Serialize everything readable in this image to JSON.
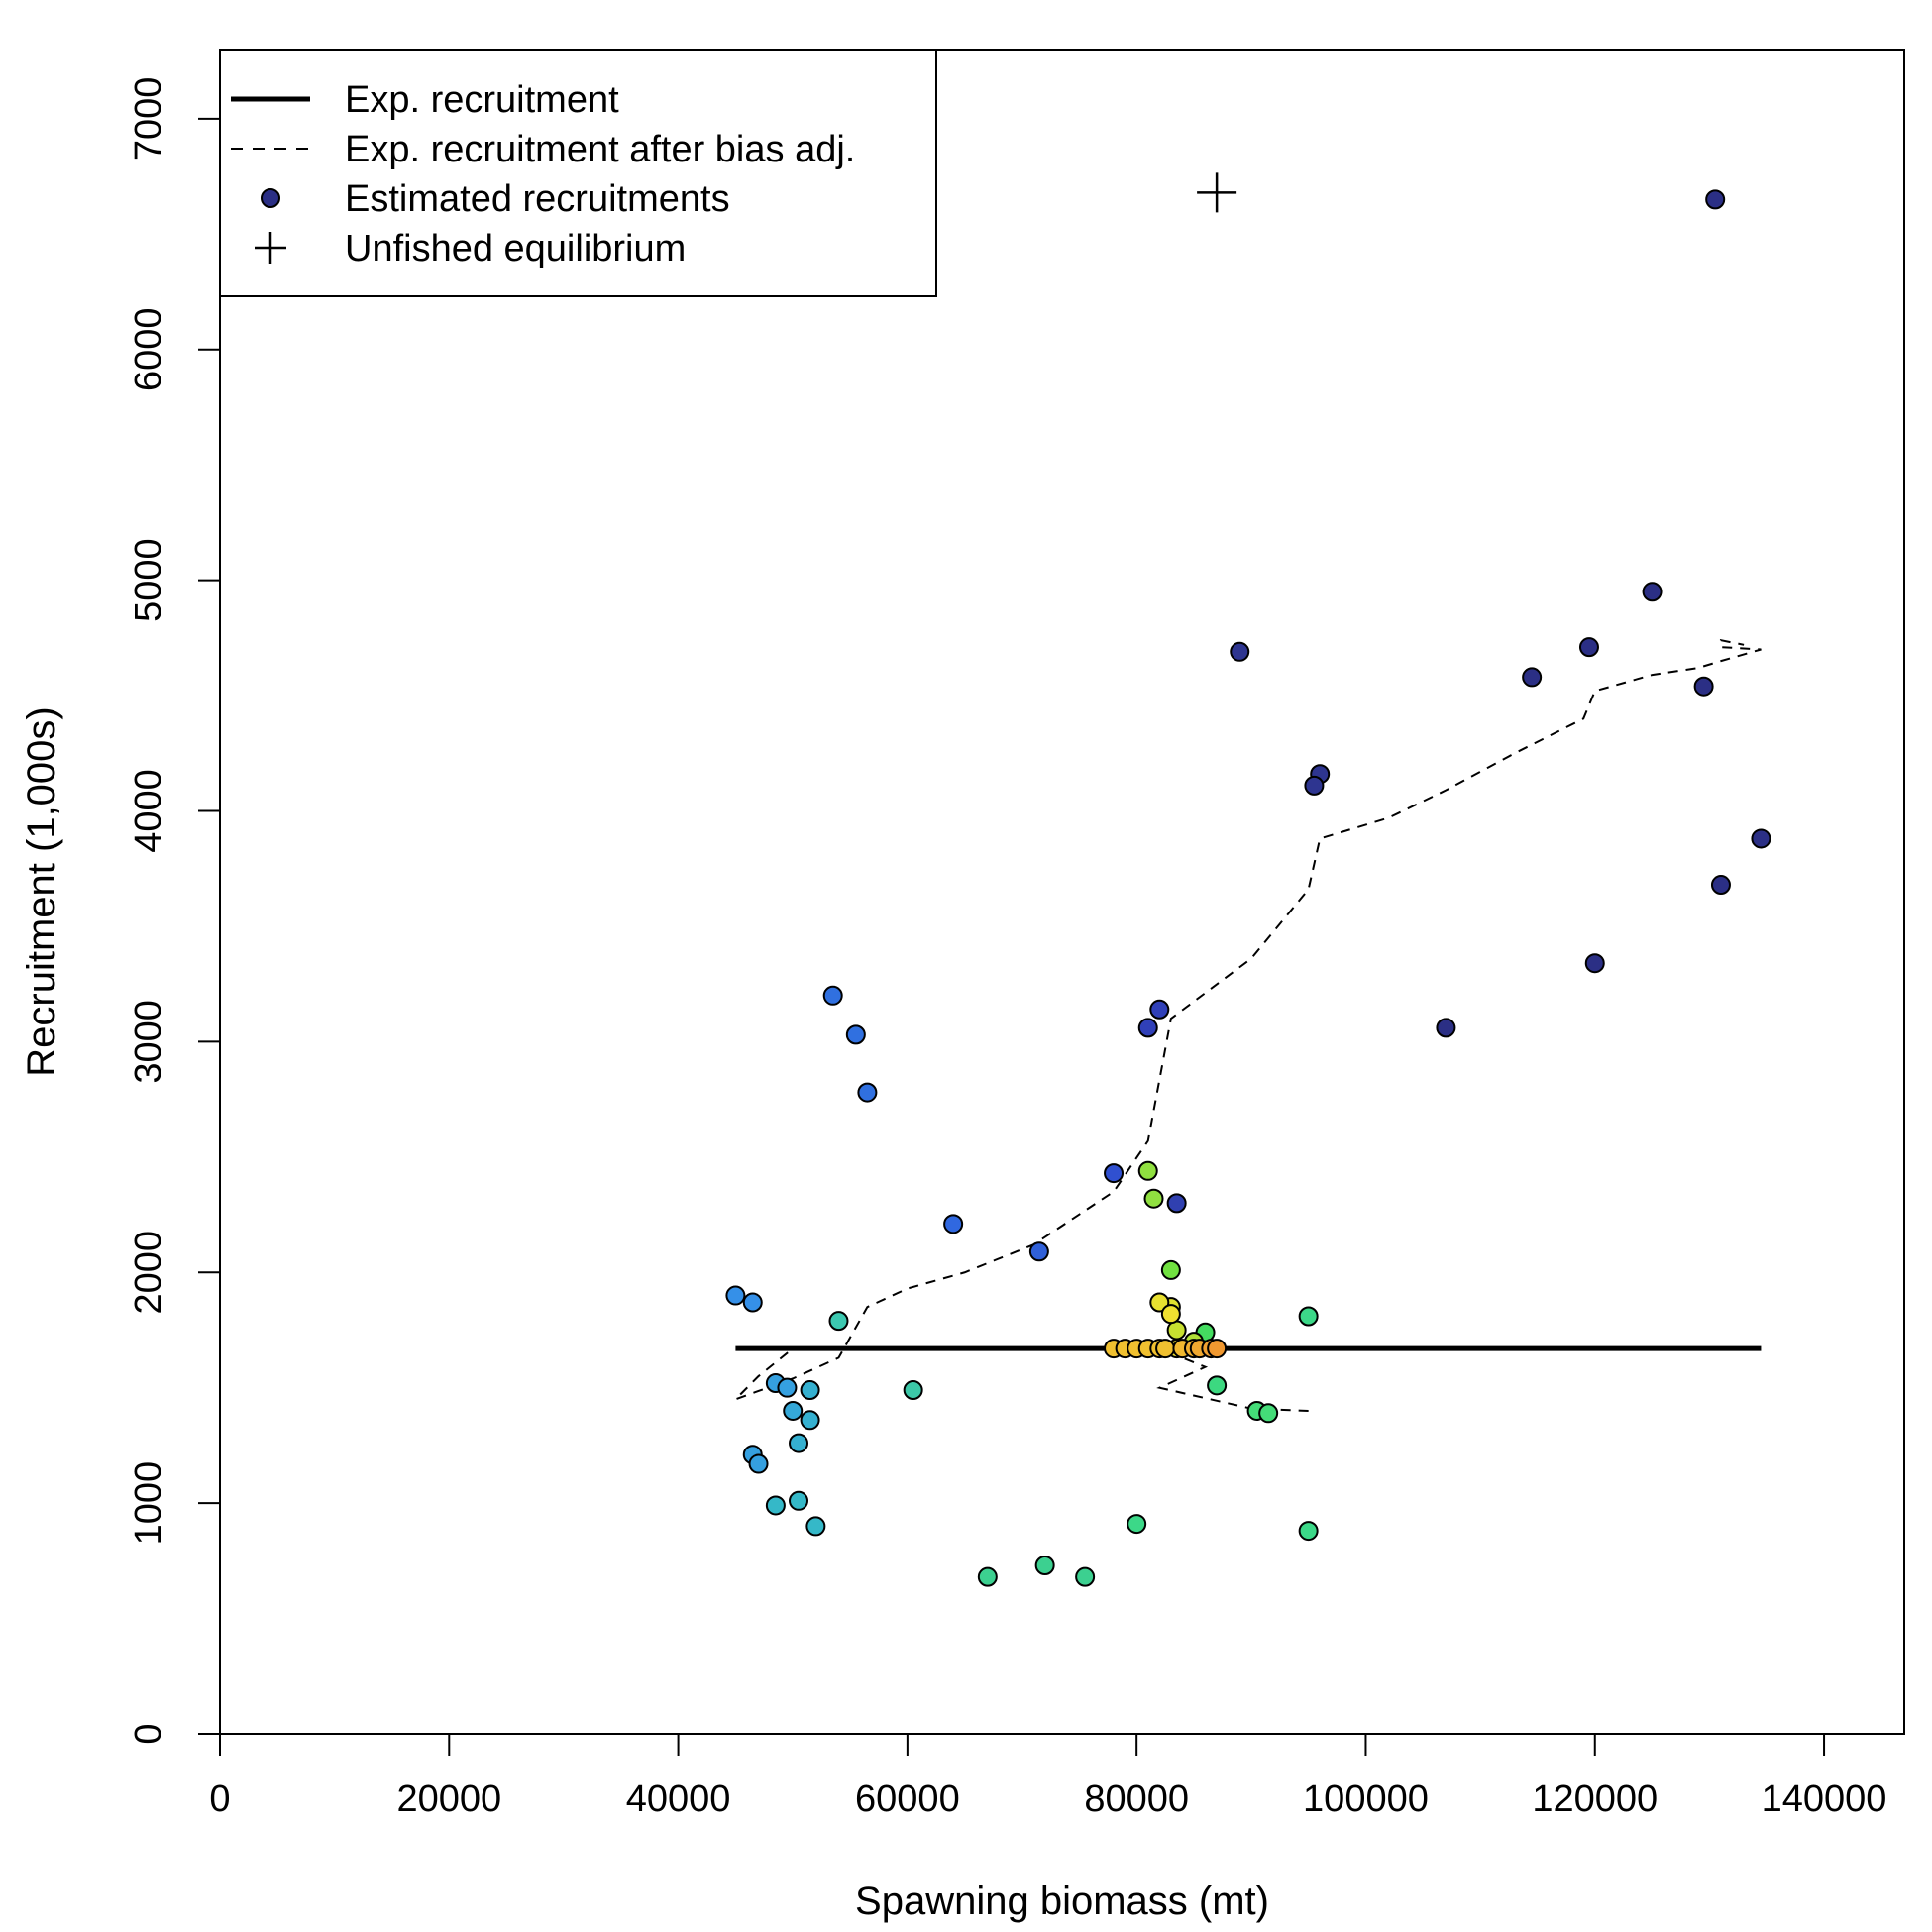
{
  "chart_data": {
    "type": "scatter",
    "xlabel": "Spawning biomass (mt)",
    "ylabel": "Recruitment (1,000s)",
    "xlim": [
      0,
      147000
    ],
    "ylim": [
      0,
      7300
    ],
    "xticks": [
      0,
      20000,
      40000,
      60000,
      80000,
      100000,
      120000,
      140000
    ],
    "yticks": [
      0,
      1000,
      2000,
      3000,
      4000,
      5000,
      6000,
      7000
    ],
    "legend_position": "top-left",
    "legend": [
      {
        "label": "Exp. recruitment",
        "symbol": "solid-line"
      },
      {
        "label": "Exp. recruitment after bias adj.",
        "symbol": "dashed-line"
      },
      {
        "label": "Estimated recruitments",
        "symbol": "filled-circle",
        "color": "#2B2F85"
      },
      {
        "label": "Unfished equilibrium",
        "symbol": "plus"
      }
    ],
    "expected_recruitment": {
      "x": [
        45000,
        134500
      ],
      "y": [
        1670,
        1670
      ]
    },
    "expected_recruitment_bias_adj": {
      "x": [
        95000,
        90000,
        82000,
        86000,
        82000,
        75000,
        62000,
        50000,
        47000,
        45000,
        50000,
        54000,
        56500,
        60000,
        65000,
        71000,
        78000,
        81000,
        83000,
        90000,
        95000,
        96000,
        102000,
        107000,
        113000,
        119000,
        120000,
        125000,
        129000,
        131000,
        134500,
        131000,
        131000,
        133000
      ],
      "y": [
        1400,
        1410,
        1500,
        1590,
        1670,
        1670,
        1670,
        1670,
        1550,
        1450,
        1540,
        1630,
        1850,
        1930,
        2000,
        2120,
        2350,
        2570,
        3100,
        3360,
        3660,
        3880,
        3970,
        4090,
        4250,
        4400,
        4520,
        4590,
        4620,
        4650,
        4700,
        4710,
        4740,
        4720
      ]
    },
    "unfished_equilibrium": {
      "x": 87000,
      "y": 6680
    },
    "estimated_recruitments": [
      {
        "x": 130500,
        "y": 6650,
        "color": "#2B2F85"
      },
      {
        "x": 125000,
        "y": 4950,
        "color": "#2B2F85"
      },
      {
        "x": 119500,
        "y": 4710,
        "color": "#2B2F85"
      },
      {
        "x": 114500,
        "y": 4580,
        "color": "#2B2F85"
      },
      {
        "x": 129500,
        "y": 4540,
        "color": "#2B2F85"
      },
      {
        "x": 134500,
        "y": 3880,
        "color": "#2B2F85"
      },
      {
        "x": 131000,
        "y": 3680,
        "color": "#2B2F85"
      },
      {
        "x": 120000,
        "y": 3340,
        "color": "#2B2F85"
      },
      {
        "x": 107000,
        "y": 3060,
        "color": "#2B2F85"
      },
      {
        "x": 89000,
        "y": 4690,
        "color": "#2E3590"
      },
      {
        "x": 96000,
        "y": 4160,
        "color": "#2E3590"
      },
      {
        "x": 95500,
        "y": 4110,
        "color": "#2E3590"
      },
      {
        "x": 83500,
        "y": 2300,
        "color": "#3040B0"
      },
      {
        "x": 82000,
        "y": 3140,
        "color": "#3040B8"
      },
      {
        "x": 81000,
        "y": 3060,
        "color": "#3040B8"
      },
      {
        "x": 78000,
        "y": 2430,
        "color": "#3050D0"
      },
      {
        "x": 71500,
        "y": 2090,
        "color": "#3060D8"
      },
      {
        "x": 64000,
        "y": 2210,
        "color": "#3068E0"
      },
      {
        "x": 53500,
        "y": 3200,
        "color": "#3070E0"
      },
      {
        "x": 55500,
        "y": 3030,
        "color": "#3070E0"
      },
      {
        "x": 56500,
        "y": 2780,
        "color": "#3070E0"
      },
      {
        "x": 45000,
        "y": 1900,
        "color": "#3590E8"
      },
      {
        "x": 46500,
        "y": 1870,
        "color": "#3590E8"
      },
      {
        "x": 48500,
        "y": 1520,
        "color": "#35A0E0"
      },
      {
        "x": 49500,
        "y": 1500,
        "color": "#35A0E0"
      },
      {
        "x": 50000,
        "y": 1400,
        "color": "#35A8D8"
      },
      {
        "x": 46500,
        "y": 1210,
        "color": "#35A0E0"
      },
      {
        "x": 47000,
        "y": 1170,
        "color": "#35A0E0"
      },
      {
        "x": 51500,
        "y": 1360,
        "color": "#35B0D0"
      },
      {
        "x": 51500,
        "y": 1490,
        "color": "#35B0D0"
      },
      {
        "x": 50500,
        "y": 1260,
        "color": "#35B0D0"
      },
      {
        "x": 48500,
        "y": 990,
        "color": "#35B8C8"
      },
      {
        "x": 50500,
        "y": 1010,
        "color": "#35B8C8"
      },
      {
        "x": 52000,
        "y": 900,
        "color": "#35B8C8"
      },
      {
        "x": 54000,
        "y": 1790,
        "color": "#3CC8B0"
      },
      {
        "x": 60500,
        "y": 1490,
        "color": "#3CC8A8"
      },
      {
        "x": 67000,
        "y": 680,
        "color": "#3CD090"
      },
      {
        "x": 72000,
        "y": 730,
        "color": "#3CD090"
      },
      {
        "x": 75500,
        "y": 680,
        "color": "#3CD090"
      },
      {
        "x": 80000,
        "y": 910,
        "color": "#3CD888"
      },
      {
        "x": 95000,
        "y": 880,
        "color": "#3CD888"
      },
      {
        "x": 95000,
        "y": 1810,
        "color": "#3CD888"
      },
      {
        "x": 87000,
        "y": 1510,
        "color": "#3CD880"
      },
      {
        "x": 90500,
        "y": 1400,
        "color": "#44DC78"
      },
      {
        "x": 91500,
        "y": 1390,
        "color": "#44DC78"
      },
      {
        "x": 86000,
        "y": 1740,
        "color": "#44DC60"
      },
      {
        "x": 83000,
        "y": 2010,
        "color": "#70E040"
      },
      {
        "x": 81000,
        "y": 2440,
        "color": "#90E040"
      },
      {
        "x": 81500,
        "y": 2320,
        "color": "#90E040"
      },
      {
        "x": 85000,
        "y": 1700,
        "color": "#B0E038"
      },
      {
        "x": 83500,
        "y": 1750,
        "color": "#C8E030"
      },
      {
        "x": 83000,
        "y": 1850,
        "color": "#E0E030"
      },
      {
        "x": 82000,
        "y": 1870,
        "color": "#E8E030"
      },
      {
        "x": 83000,
        "y": 1820,
        "color": "#F0E030"
      },
      {
        "x": 83500,
        "y": 1670,
        "color": "#F0E030"
      },
      {
        "x": 78000,
        "y": 1670,
        "color": "#F0C030"
      },
      {
        "x": 79000,
        "y": 1670,
        "color": "#F0C030"
      },
      {
        "x": 80000,
        "y": 1670,
        "color": "#F0C030"
      },
      {
        "x": 81000,
        "y": 1670,
        "color": "#F0C030"
      },
      {
        "x": 82000,
        "y": 1670,
        "color": "#F0C030"
      },
      {
        "x": 82500,
        "y": 1670,
        "color": "#F0C030"
      },
      {
        "x": 84000,
        "y": 1670,
        "color": "#F0B830"
      },
      {
        "x": 85000,
        "y": 1670,
        "color": "#F0B030"
      },
      {
        "x": 85500,
        "y": 1670,
        "color": "#F0A830"
      },
      {
        "x": 86500,
        "y": 1670,
        "color": "#F0A030"
      },
      {
        "x": 87000,
        "y": 1670,
        "color": "#F09830"
      }
    ]
  }
}
